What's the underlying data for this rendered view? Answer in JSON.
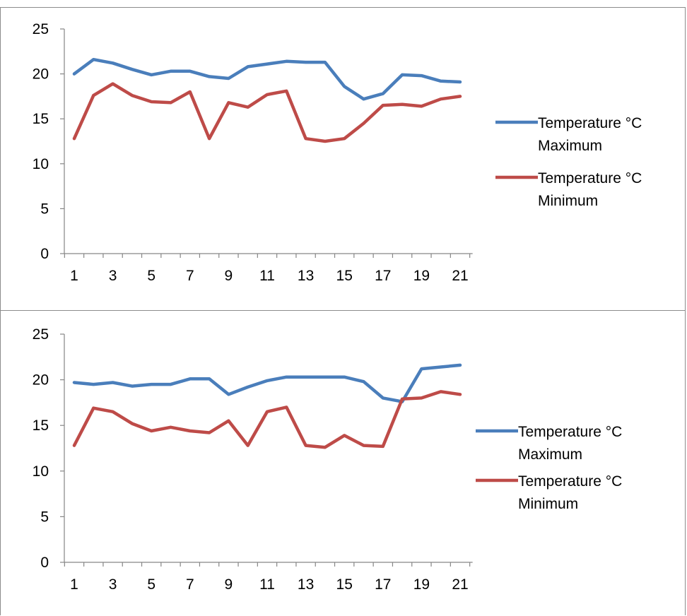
{
  "chart_data": [
    {
      "type": "line",
      "x": [
        1,
        2,
        3,
        4,
        5,
        6,
        7,
        8,
        9,
        10,
        11,
        12,
        13,
        14,
        15,
        16,
        17,
        18,
        19,
        20,
        21
      ],
      "x_ticks": [
        1,
        3,
        5,
        7,
        9,
        11,
        13,
        15,
        17,
        19,
        21
      ],
      "ylim": [
        0,
        25
      ],
      "y_ticks": [
        0,
        5,
        10,
        15,
        20,
        25
      ],
      "grid": false,
      "legend_position": "right",
      "series": [
        {
          "name_line1": "Temperature °C",
          "name_line2": "Maximum",
          "color": "#4a7ebb",
          "values": [
            20,
            21.6,
            21.2,
            20.5,
            19.9,
            20.3,
            20.3,
            19.7,
            19.5,
            20.8,
            21.1,
            21.4,
            21.3,
            21.3,
            18.6,
            17.2,
            17.8,
            19.9,
            19.8,
            19.2,
            19.1
          ]
        },
        {
          "name_line1": "Temperature °C",
          "name_line2": "Minimum",
          "color": "#be4b48",
          "values": [
            12.8,
            17.6,
            18.9,
            17.6,
            16.9,
            16.8,
            18,
            12.8,
            16.8,
            16.3,
            17.7,
            18.1,
            12.8,
            12.5,
            12.8,
            14.5,
            16.5,
            16.6,
            16.4,
            17.2,
            17.5
          ]
        }
      ]
    },
    {
      "type": "line",
      "x": [
        1,
        2,
        3,
        4,
        5,
        6,
        7,
        8,
        9,
        10,
        11,
        12,
        13,
        14,
        15,
        16,
        17,
        18,
        19,
        20,
        21
      ],
      "x_ticks": [
        1,
        3,
        5,
        7,
        9,
        11,
        13,
        15,
        17,
        19,
        21
      ],
      "ylim": [
        0,
        25
      ],
      "y_ticks": [
        0,
        5,
        10,
        15,
        20,
        25
      ],
      "grid": false,
      "legend_position": "right",
      "series": [
        {
          "name_line1": "Temperature °C",
          "name_line2": "Maximum",
          "color": "#4a7ebb",
          "values": [
            19.7,
            19.5,
            19.7,
            19.3,
            19.5,
            19.5,
            20.1,
            20.1,
            18.4,
            19.2,
            19.9,
            20.3,
            20.3,
            20.3,
            20.3,
            19.8,
            18,
            17.6,
            21.2,
            21.4,
            21.6
          ]
        },
        {
          "name_line1": "Temperature °C",
          "name_line2": "Minimum",
          "color": "#be4b48",
          "values": [
            12.8,
            16.9,
            16.5,
            15.2,
            14.4,
            14.8,
            14.4,
            14.2,
            15.5,
            12.8,
            16.5,
            17,
            12.8,
            12.6,
            13.9,
            12.8,
            12.7,
            17.9,
            18,
            18.7,
            18.4
          ]
        }
      ]
    }
  ]
}
